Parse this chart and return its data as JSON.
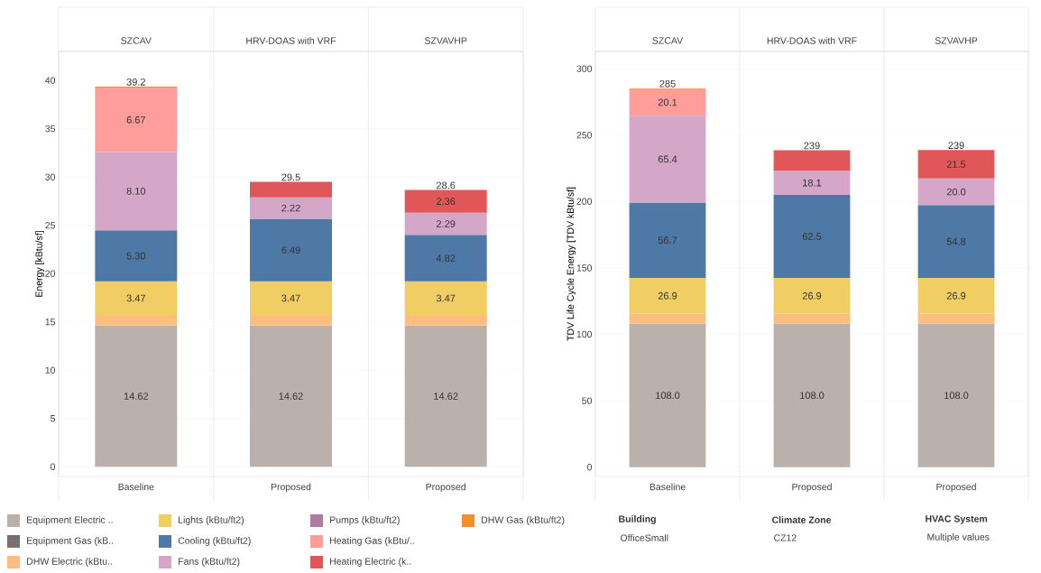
{
  "chart_data": [
    {
      "type": "bar",
      "stacked": true,
      "ylabel": "Energy [kBtu/sf]",
      "categories": [
        "Baseline",
        "Proposed",
        "Proposed"
      ],
      "ylim": [
        -1,
        43
      ],
      "yticks": [
        0,
        5,
        10,
        15,
        20,
        25,
        30,
        35,
        40
      ],
      "grid": "y",
      "legend": "bottom",
      "annotations": [
        "SZCAV",
        "HRV-DOAS with VRF",
        "SZVAVHP"
      ],
      "totals": [
        "39.2",
        "29.5",
        "28.6"
      ],
      "series": [
        {
          "name": "Equipment Electric ..",
          "color": "#bab0ac",
          "values": [
            14.62,
            14.62,
            14.62
          ],
          "value_labels": [
            "14.62",
            "14.62",
            "14.62"
          ]
        },
        {
          "name": "Equipment Gas (kB..",
          "color": "#79706e",
          "values": [
            null,
            null,
            null
          ]
        },
        {
          "name": "DHW Electric (kBtu..",
          "color": "#ffbe7d",
          "values": [
            1.1,
            1.1,
            1.1
          ]
        },
        {
          "name": "Lights (kBtu/ft2)",
          "color": "#f1ce63",
          "values": [
            3.47,
            3.47,
            3.47
          ],
          "value_labels": [
            "3.47",
            "3.47",
            "3.47"
          ]
        },
        {
          "name": "Cooling (kBtu/ft2)",
          "color": "#4e79a7",
          "values": [
            5.3,
            6.49,
            4.82
          ],
          "value_labels": [
            "5.30",
            "6.49",
            "4.82"
          ]
        },
        {
          "name": "Fans (kBtu/ft2)",
          "color": "#d4a6c8",
          "values": [
            8.1,
            2.22,
            2.29
          ],
          "value_labels": [
            "8.10",
            "2.22",
            "2.29"
          ]
        },
        {
          "name": "Pumps (kBtu/ft2)",
          "color": "#b07aa1",
          "values": [
            null,
            null,
            null
          ]
        },
        {
          "name": "Heating Gas (kBtu/..",
          "color": "#ff9d9a",
          "values": [
            6.67,
            null,
            null
          ],
          "value_labels": [
            "6.67",
            null,
            null
          ]
        },
        {
          "name": "Heating Electric (k..",
          "color": "#e15759",
          "values": [
            null,
            1.6,
            2.36
          ],
          "value_labels": [
            null,
            null,
            "2.36"
          ]
        },
        {
          "name": "DHW Gas (kBtu/ft2)",
          "color": "#f28e2b",
          "values": [
            0.1,
            null,
            null
          ]
        }
      ]
    },
    {
      "type": "bar",
      "stacked": true,
      "ylabel": "TDV Life Cycle Energy [TDV kBtu/sf]",
      "categories": [
        "Baseline",
        "Proposed",
        "Proposed"
      ],
      "ylim": [
        -7,
        313
      ],
      "yticks": [
        0,
        50,
        100,
        150,
        200,
        250,
        300
      ],
      "grid": "y",
      "annotations": [
        "SZCAV",
        "HRV-DOAS with VRF",
        "SZVAVHP",
        "Building",
        "OfficeSmall",
        "Climate Zone",
        "CZ12",
        "HVAC System",
        "Multiple values"
      ],
      "totals": [
        "285",
        "239",
        "239"
      ],
      "series": [
        {
          "color": "#bab0ac",
          "values": [
            108.0,
            108.0,
            108.0
          ],
          "value_labels": [
            "108.0",
            "108.0",
            "108.0"
          ]
        },
        {
          "color": "#ffbe7d",
          "values": [
            7.6,
            7.6,
            7.6
          ]
        },
        {
          "color": "#f1ce63",
          "values": [
            26.9,
            26.9,
            26.9
          ],
          "value_labels": [
            "26.9",
            "26.9",
            "26.9"
          ]
        },
        {
          "color": "#4e79a7",
          "values": [
            56.7,
            62.5,
            54.8
          ],
          "value_labels": [
            "56.7",
            "62.5",
            "54.8"
          ]
        },
        {
          "color": "#d4a6c8",
          "values": [
            65.4,
            18.1,
            20.0
          ],
          "value_labels": [
            "65.4",
            "18.1",
            "20.0"
          ]
        },
        {
          "color": "#ff9d9a",
          "values": [
            20.1,
            null,
            null
          ],
          "value_labels": [
            "20.1",
            null,
            null
          ]
        },
        {
          "color": "#e15759",
          "values": [
            null,
            15.5,
            21.5
          ],
          "value_labels": [
            null,
            null,
            "21.5"
          ]
        },
        {
          "color": "#f28e2b",
          "values": [
            0.5,
            null,
            null
          ]
        }
      ]
    }
  ]
}
